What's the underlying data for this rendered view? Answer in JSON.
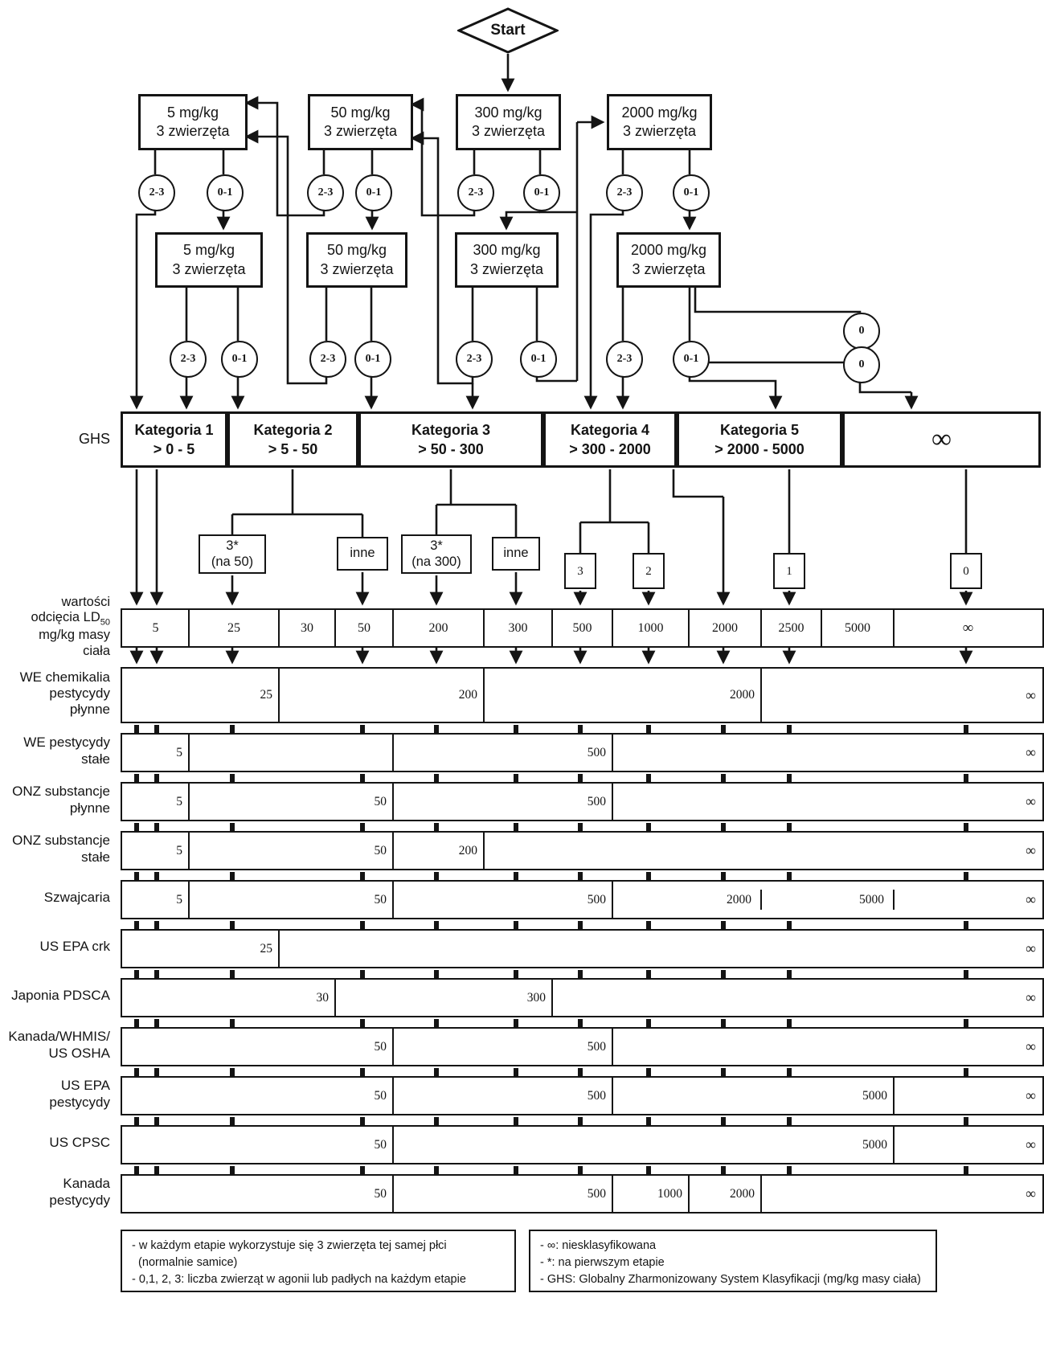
{
  "flow": {
    "start": "Start",
    "s1": [
      {
        "l1": "5 mg/kg",
        "l2": "3 zwierzęta"
      },
      {
        "l1": "50 mg/kg",
        "l2": "3 zwierzęta"
      },
      {
        "l1": "300 mg/kg",
        "l2": "3 zwierzęta"
      },
      {
        "l1": "2000 mg/kg",
        "l2": "3 zwierzęta"
      }
    ],
    "s2": [
      {
        "l1": "5 mg/kg",
        "l2": "3 zwierzęta"
      },
      {
        "l1": "50 mg/kg",
        "l2": "3 zwierzęta"
      },
      {
        "l1": "300 mg/kg",
        "l2": "3 zwierzęta"
      },
      {
        "l1": "2000 mg/kg",
        "l2": "3 zwierzęta"
      }
    ],
    "c": {
      "hi": "2-3",
      "lo": "0-1",
      "zero": "0"
    }
  },
  "ghs": {
    "label": "GHS",
    "cats": [
      {
        "name": "Kategoria 1",
        "range": "> 0 - 5"
      },
      {
        "name": "Kategoria 2",
        "range": "> 5 - 50"
      },
      {
        "name": "Kategoria 3",
        "range": "> 50 - 300"
      },
      {
        "name": "Kategoria 4",
        "range": "> 300 - 2000"
      },
      {
        "name": "Kategoria 5",
        "range": "> 2000 - 5000"
      },
      {
        "name": "",
        "range": "∞"
      }
    ]
  },
  "est": [
    {
      "l1": "3*",
      "l2": "(na 50)"
    },
    {
      "l1": "inne",
      "l2": ""
    },
    {
      "l1": "3*",
      "l2": "(na 300)"
    },
    {
      "l1": "inne",
      "l2": ""
    },
    {
      "l1": "3",
      "l2": ""
    },
    {
      "l1": "2",
      "l2": ""
    },
    {
      "l1": "1",
      "l2": ""
    },
    {
      "l1": "0",
      "l2": ""
    }
  ],
  "axis": {
    "l1": "wartości",
    "ld": "odcięcia LD",
    "ldsub": "50",
    "l3": "mg/kg masy",
    "l4": "ciała",
    "values": [
      "5",
      "25",
      "30",
      "50",
      "200",
      "300",
      "500",
      "1000",
      "2000",
      "2500",
      "5000",
      "∞"
    ]
  },
  "scales": [
    {
      "label_lines": [
        "WE chemikalia",
        "pestycydy",
        "płynne"
      ],
      "segments": [
        {
          "label": "25",
          "cut": "25"
        },
        {
          "label": "200",
          "cut": "200"
        },
        {
          "label": "2000",
          "cut": "2000"
        },
        {
          "label": "∞",
          "cut": "inf"
        }
      ]
    },
    {
      "label_lines": [
        "WE pestycydy",
        "stałe"
      ],
      "segments": [
        {
          "label": "5",
          "cut": "5"
        },
        {
          "label": "",
          "cut": "50"
        },
        {
          "label": "500",
          "cut": "500"
        },
        {
          "label": "∞",
          "cut": "inf"
        }
      ]
    },
    {
      "label_lines": [
        "ONZ substancje",
        "płynne"
      ],
      "segments": [
        {
          "label": "5",
          "cut": "5"
        },
        {
          "label": "50",
          "cut": "50"
        },
        {
          "label": "500",
          "cut": "500"
        },
        {
          "label": "∞",
          "cut": "inf"
        }
      ]
    },
    {
      "label_lines": [
        "ONZ substancje",
        "stałe"
      ],
      "segments": [
        {
          "label": "5",
          "cut": "5"
        },
        {
          "label": "50",
          "cut": "50"
        },
        {
          "label": "200",
          "cut": "200"
        },
        {
          "label": "∞",
          "cut": "inf"
        }
      ]
    },
    {
      "label_lines": [
        "Szwajcaria"
      ],
      "segments": [
        {
          "label": "5",
          "cut": "5"
        },
        {
          "label": "50",
          "cut": "50"
        },
        {
          "label": "500",
          "cut": "500"
        },
        {
          "label": "2000",
          "cut": "2000",
          "tick": true
        },
        {
          "label": "5000",
          "cut": "5000",
          "tick": true
        },
        {
          "label": "∞",
          "cut": "inf"
        }
      ]
    },
    {
      "label_lines": [
        "US EPA crk"
      ],
      "segments": [
        {
          "label": "25",
          "cut": "25"
        },
        {
          "label": "∞",
          "cut": "inf"
        }
      ]
    },
    {
      "label_lines": [
        "Japonia PDSCA"
      ],
      "segments": [
        {
          "label": "30",
          "cut": "30"
        },
        {
          "label": "300",
          "cut": "300"
        },
        {
          "label": "∞",
          "cut": "inf"
        }
      ]
    },
    {
      "label_lines": [
        "Kanada/WHMIS/",
        "US OSHA"
      ],
      "segments": [
        {
          "label": "50",
          "cut": "50"
        },
        {
          "label": "500",
          "cut": "500"
        },
        {
          "label": "∞",
          "cut": "inf"
        }
      ]
    },
    {
      "label_lines": [
        "US EPA",
        "pestycydy"
      ],
      "segments": [
        {
          "label": "50",
          "cut": "50"
        },
        {
          "label": "500",
          "cut": "500"
        },
        {
          "label": "5000",
          "cut": "5000"
        },
        {
          "label": "∞",
          "cut": "inf"
        }
      ]
    },
    {
      "label_lines": [
        "US CPSC"
      ],
      "segments": [
        {
          "label": "50",
          "cut": "50"
        },
        {
          "label": "5000",
          "cut": "5000"
        },
        {
          "label": "∞",
          "cut": "inf"
        }
      ]
    },
    {
      "label_lines": [
        "Kanada",
        "pestycydy"
      ],
      "segments": [
        {
          "label": "50",
          "cut": "50"
        },
        {
          "label": "500",
          "cut": "500"
        },
        {
          "label": "1000",
          "cut": "1000"
        },
        {
          "label": "2000",
          "cut": "2000"
        },
        {
          "label": "∞",
          "cut": "inf"
        }
      ]
    }
  ],
  "legend": {
    "left_lines": [
      "- w każdym etapie wykorzystuje się 3 zwierzęta tej samej płci",
      "  (normalnie samice)",
      "- 0,1, 2, 3: liczba zwierząt w agonii lub padłych na każdym etapie"
    ],
    "right_lines": [
      "- ∞: niesklasyfikowana",
      "- *: na pierwszym etapie",
      "- GHS: Globalny Zharmonizowany System Klasyfikacji (mg/kg masy ciała)"
    ]
  }
}
